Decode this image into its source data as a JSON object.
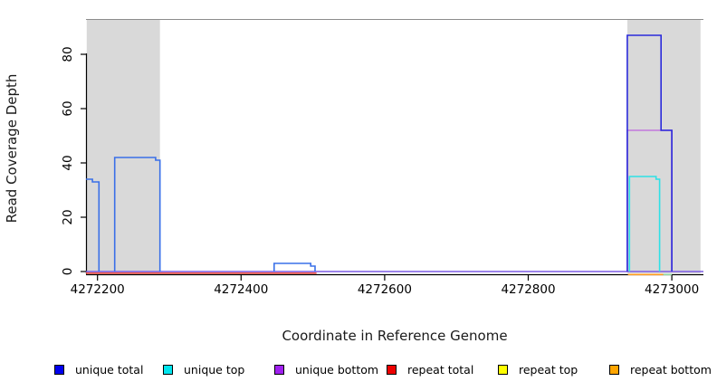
{
  "chart_data": {
    "type": "line",
    "title": "",
    "xlabel": "Coordinate in Reference Genome",
    "ylabel": "Read Coverage Depth",
    "xlim": [
      4272184,
      4273044
    ],
    "ylim": [
      0,
      93
    ],
    "grid": false,
    "x_ticks": [
      {
        "value": 4272200,
        "label": "4272200"
      },
      {
        "value": 4272400,
        "label": "4272400"
      },
      {
        "value": 4272600,
        "label": "4272600"
      },
      {
        "value": 4272800,
        "label": "4272800"
      },
      {
        "value": 4273000,
        "label": "4273000"
      }
    ],
    "y_ticks": [
      {
        "value": 0,
        "label": "0"
      },
      {
        "value": 20,
        "label": "20"
      },
      {
        "value": 40,
        "label": "40"
      },
      {
        "value": 60,
        "label": "60"
      },
      {
        "value": 80,
        "label": "80"
      }
    ],
    "shaded_regions": [
      {
        "name": "repeat-region-left",
        "x0": 4272185,
        "x1": 4272287
      },
      {
        "name": "repeat-region-right",
        "x0": 4272938,
        "x1": 4273040
      }
    ],
    "shade_color": "#d9d9d9",
    "top_border_color": "#8c8c8c",
    "axis_color": "#000000",
    "series": [
      {
        "name": "unique-bottom-baseline",
        "legend": "unique bottom",
        "color": "#7b5ae4",
        "points": [
          [
            4272184,
            0
          ],
          [
            4273044,
            0
          ]
        ]
      },
      {
        "name": "repeat-total-baseline",
        "legend": "repeat total",
        "color": "#ef4b42",
        "points": [
          [
            4272184,
            -0.6
          ],
          [
            4272505,
            -0.6
          ]
        ]
      },
      {
        "name": "repeat-bottom-segment",
        "legend": "repeat bottom",
        "color": "#ff9a1e",
        "points": [
          [
            4272939,
            -1.1
          ],
          [
            4272988,
            -1.1
          ]
        ]
      },
      {
        "name": "unique-top-baseline-segment",
        "legend": "unique top",
        "color": "#8fd6a0",
        "points": [
          [
            4272988,
            -1.1
          ],
          [
            4273000,
            -1.1
          ]
        ]
      },
      {
        "name": "unique-bottom-peak",
        "legend": "unique bottom",
        "color": "#c278dd",
        "points": [
          [
            4272938,
            0
          ],
          [
            4272938,
            52
          ],
          [
            4273000,
            52
          ],
          [
            4273000,
            0
          ]
        ]
      },
      {
        "name": "unique-top-peak",
        "legend": "unique top",
        "color": "#2ee1e6",
        "points": [
          [
            4272941,
            0
          ],
          [
            4272941,
            35
          ],
          [
            4272978,
            35
          ],
          [
            4272978,
            34
          ],
          [
            4272983,
            34
          ],
          [
            4272983,
            0
          ]
        ]
      },
      {
        "name": "unique-total-left-1",
        "legend": "unique total",
        "color": "#3a70e8",
        "points": [
          [
            4272184,
            34
          ],
          [
            4272193,
            34
          ],
          [
            4272193,
            33
          ],
          [
            4272202,
            33
          ],
          [
            4272202,
            0
          ]
        ]
      },
      {
        "name": "unique-total-left-2",
        "legend": "unique total",
        "color": "#3a70e8",
        "points": [
          [
            4272224,
            0
          ],
          [
            4272224,
            42
          ],
          [
            4272281,
            42
          ],
          [
            4272281,
            41
          ],
          [
            4272287,
            41
          ],
          [
            4272287,
            0
          ]
        ]
      },
      {
        "name": "unique-total-middle-bump",
        "legend": "unique total",
        "color": "#3a70e8",
        "points": [
          [
            4272446,
            0
          ],
          [
            4272446,
            3
          ],
          [
            4272497,
            3
          ],
          [
            4272497,
            2
          ],
          [
            4272503,
            2
          ],
          [
            4272503,
            0
          ]
        ]
      },
      {
        "name": "unique-total-right-peak",
        "legend": "unique total",
        "color": "#2b2bdb",
        "points": [
          [
            4272938,
            0
          ],
          [
            4272938,
            87
          ],
          [
            4272985,
            87
          ],
          [
            4272985,
            52
          ],
          [
            4273000,
            52
          ],
          [
            4273000,
            0
          ]
        ]
      }
    ]
  },
  "legend": {
    "items": [
      {
        "label": "unique total",
        "color": "#0000ee"
      },
      {
        "label": "unique top",
        "color": "#00e5ee"
      },
      {
        "label": "unique bottom",
        "color": "#a020f0"
      },
      {
        "label": "repeat total",
        "color": "#ee0000"
      },
      {
        "label": "repeat top",
        "color": "#ffff00"
      },
      {
        "label": "repeat bottom",
        "color": "#ffa500"
      }
    ]
  }
}
